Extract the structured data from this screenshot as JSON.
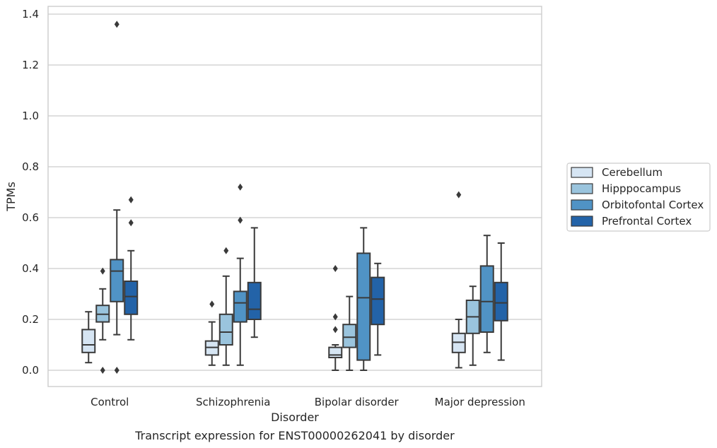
{
  "chart_data": {
    "type": "boxplot",
    "title": "",
    "caption": "Transcript expression for ENST00000262041 by disorder",
    "xlabel": "Disorder",
    "ylabel": "TPMs",
    "ylim": [
      -0.065,
      1.43
    ],
    "yticks": [
      0.0,
      0.2,
      0.4,
      0.6,
      0.8,
      1.0,
      1.2,
      1.4
    ],
    "ytick_labels": [
      "0.0",
      "0.2",
      "0.4",
      "0.6",
      "0.8",
      "1.0",
      "1.2",
      "1.4"
    ],
    "grid": "horizontal",
    "legend_position": "right",
    "categories": [
      "Control",
      "Schizophrenia",
      "Bipolar disorder",
      "Major depression"
    ],
    "series": [
      {
        "name": "Cerebellum",
        "color": "#d6e5f3",
        "boxes": [
          {
            "whisker_low": 0.03,
            "q1": 0.07,
            "median": 0.1,
            "q3": 0.16,
            "whisker_high": 0.23,
            "outliers": []
          },
          {
            "whisker_low": 0.02,
            "q1": 0.06,
            "median": 0.09,
            "q3": 0.115,
            "whisker_high": 0.19,
            "outliers": [
              0.26
            ]
          },
          {
            "whisker_low": 0.0,
            "q1": 0.05,
            "median": 0.06,
            "q3": 0.09,
            "whisker_high": 0.1,
            "outliers": [
              0.16,
              0.21,
              0.4
            ]
          },
          {
            "whisker_low": 0.01,
            "q1": 0.07,
            "median": 0.11,
            "q3": 0.145,
            "whisker_high": 0.2,
            "outliers": [
              0.69
            ]
          }
        ]
      },
      {
        "name": "Hipppocampus",
        "color": "#9ac4dd",
        "boxes": [
          {
            "whisker_low": 0.12,
            "q1": 0.19,
            "median": 0.22,
            "q3": 0.255,
            "whisker_high": 0.32,
            "outliers": [
              0.0,
              0.39
            ]
          },
          {
            "whisker_low": 0.02,
            "q1": 0.1,
            "median": 0.15,
            "q3": 0.22,
            "whisker_high": 0.37,
            "outliers": [
              0.47
            ]
          },
          {
            "whisker_low": 0.0,
            "q1": 0.09,
            "median": 0.13,
            "q3": 0.18,
            "whisker_high": 0.29,
            "outliers": []
          },
          {
            "whisker_low": 0.02,
            "q1": 0.145,
            "median": 0.21,
            "q3": 0.275,
            "whisker_high": 0.33,
            "outliers": []
          }
        ]
      },
      {
        "name": "Orbitofontal Cortex",
        "color": "#5093c5",
        "boxes": [
          {
            "whisker_low": 0.14,
            "q1": 0.27,
            "median": 0.39,
            "q3": 0.435,
            "whisker_high": 0.63,
            "outliers": [
              0.0,
              1.36
            ]
          },
          {
            "whisker_low": 0.02,
            "q1": 0.19,
            "median": 0.265,
            "q3": 0.31,
            "whisker_high": 0.44,
            "outliers": [
              0.59,
              0.72
            ]
          },
          {
            "whisker_low": 0.0,
            "q1": 0.04,
            "median": 0.285,
            "q3": 0.46,
            "whisker_high": 0.56,
            "outliers": []
          },
          {
            "whisker_low": 0.07,
            "q1": 0.15,
            "median": 0.27,
            "q3": 0.41,
            "whisker_high": 0.53,
            "outliers": []
          }
        ]
      },
      {
        "name": "Prefrontal Cortex",
        "color": "#2363a8",
        "boxes": [
          {
            "whisker_low": 0.12,
            "q1": 0.22,
            "median": 0.29,
            "q3": 0.35,
            "whisker_high": 0.47,
            "outliers": [
              0.58,
              0.67
            ]
          },
          {
            "whisker_low": 0.13,
            "q1": 0.2,
            "median": 0.24,
            "q3": 0.345,
            "whisker_high": 0.56,
            "outliers": []
          },
          {
            "whisker_low": 0.06,
            "q1": 0.18,
            "median": 0.28,
            "q3": 0.365,
            "whisker_high": 0.42,
            "outliers": []
          },
          {
            "whisker_low": 0.04,
            "q1": 0.195,
            "median": 0.265,
            "q3": 0.345,
            "whisker_high": 0.5,
            "outliers": []
          }
        ]
      }
    ]
  }
}
